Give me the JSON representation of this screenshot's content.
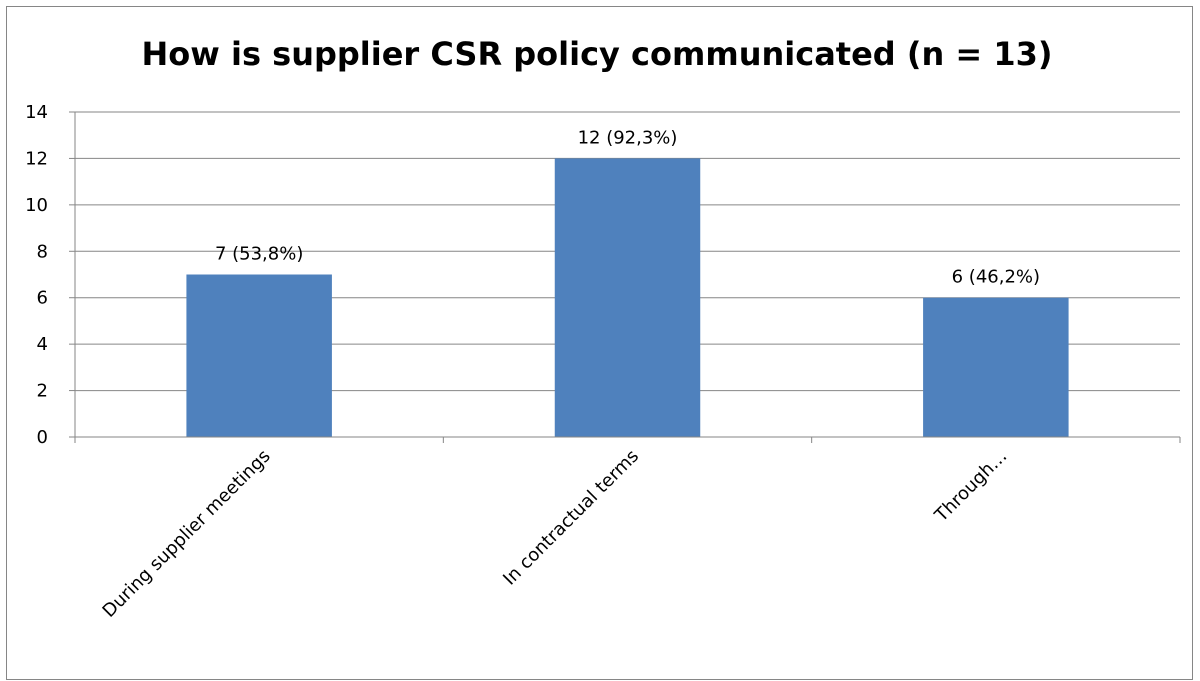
{
  "chart_data": {
    "type": "bar",
    "title": "How is supplier CSR policy communicated (n = 13)",
    "categories": [
      "During supplier meetings",
      "In contractual terms",
      "Through..."
    ],
    "display_categories": [
      "During supplier meetings",
      "In contractual terms",
      "Through…"
    ],
    "values": [
      7,
      12,
      6
    ],
    "data_labels": [
      "7 (53,8%)",
      "12 (92,3%)",
      "6 (46,2%)"
    ],
    "y_ticks": [
      "0",
      "2",
      "4",
      "6",
      "8",
      "10",
      "12",
      "14"
    ],
    "ylim": [
      0,
      14
    ],
    "xlabel": "",
    "ylabel": "",
    "grid": true,
    "legend": "none",
    "bar_color": "#4f81bd",
    "grid_color": "#868686"
  }
}
